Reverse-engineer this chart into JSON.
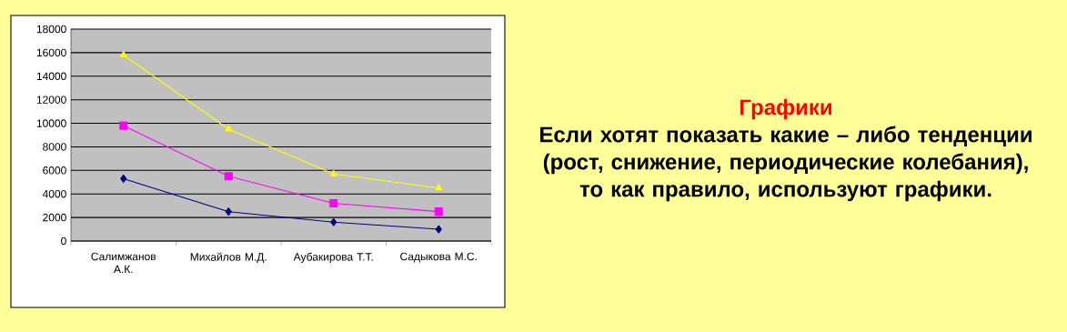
{
  "chart_data": {
    "type": "line",
    "title": "Графики",
    "subtitle": "Если хотят показать какие – либо тенденции (рост, снижение, периодические колебания),  то как правило, используют графики.",
    "categories": [
      "Салимжанов А.К.",
      "Михайлов М.Д.",
      "Аубакирова Т.Т.",
      "Садыкова М.С."
    ],
    "series": [
      {
        "color": "#000080",
        "marker": "diamond",
        "values": [
          5300,
          2500,
          1600,
          1000
        ]
      },
      {
        "color": "#ff00ff",
        "marker": "square",
        "values": [
          9800,
          5500,
          3200,
          2500
        ]
      },
      {
        "color": "#ffff00",
        "marker": "triangle",
        "values": [
          15800,
          9500,
          5700,
          4500
        ]
      }
    ],
    "ylim": [
      0,
      18000
    ],
    "yticks": [
      0,
      2000,
      4000,
      6000,
      8000,
      10000,
      12000,
      14000,
      16000,
      18000
    ],
    "grid": "y"
  }
}
